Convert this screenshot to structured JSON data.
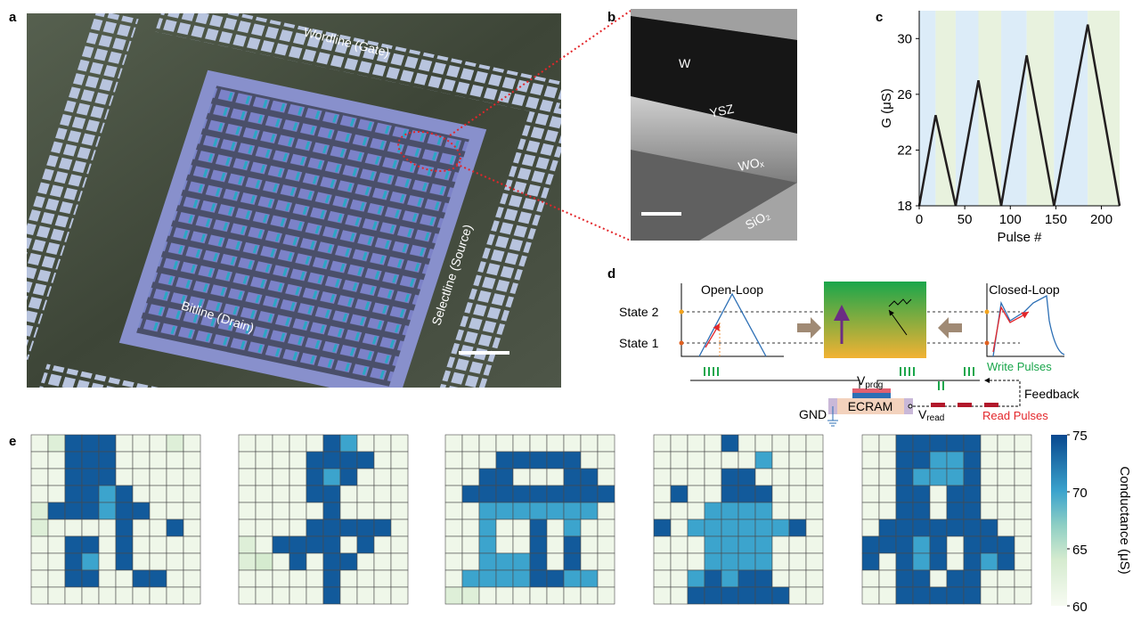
{
  "panel_labels": [
    "a",
    "b",
    "c",
    "d",
    "e"
  ],
  "panel_a": {
    "labels": [
      "Wordline (Gate)",
      "Bitline (Drain)",
      "Selectline (Source)"
    ]
  },
  "panel_b": {
    "labels": [
      "W",
      "YSZ",
      "WOₓ",
      "SiO₂"
    ]
  },
  "panel_d": {
    "open_loop": "Open-Loop",
    "closed_loop": "Closed-Loop",
    "state2": "State 2",
    "state1": "State 1",
    "vprog": [
      "V",
      "prog"
    ],
    "vread": [
      "V",
      "read"
    ],
    "write": "Write Pulses",
    "feedback": "Feedback",
    "ecram": "ECRAM",
    "gnd": "GND",
    "read": "Read Pulses"
  },
  "chart_data": [
    {
      "type": "line",
      "xlabel": "Pulse #",
      "ylabel": "G (μS)",
      "x": [
        0,
        18,
        40,
        65,
        90,
        118,
        148,
        185,
        220
      ],
      "values": [
        18,
        24.5,
        18,
        27,
        18,
        28.8,
        18,
        31,
        18
      ],
      "color": "#231f20",
      "bands": {
        "edges": [
          0,
          18,
          40,
          65,
          90,
          118,
          148,
          185,
          220
        ],
        "colors": [
          "#dcecf8",
          "#e8f2de"
        ]
      },
      "xlim": [
        0,
        220
      ],
      "xticks": [
        0,
        50,
        100,
        150,
        200
      ],
      "ylim": [
        18,
        32
      ],
      "yticks": [
        18,
        22,
        26,
        30
      ]
    },
    {
      "type": "heatmap",
      "matrices": [
        [
          [
            61,
            63,
            74,
            74,
            74,
            61,
            61,
            61,
            63,
            61
          ],
          [
            61,
            61,
            74,
            74,
            74,
            61,
            61,
            61,
            61,
            61
          ],
          [
            61,
            61,
            74,
            74,
            74,
            61,
            61,
            61,
            61,
            61
          ],
          [
            61,
            61,
            74,
            74,
            70,
            74,
            61,
            61,
            61,
            61
          ],
          [
            63,
            74,
            74,
            74,
            70,
            74,
            74,
            61,
            61,
            61
          ],
          [
            63,
            61,
            61,
            61,
            61,
            74,
            61,
            61,
            74,
            61
          ],
          [
            61,
            61,
            74,
            74,
            61,
            74,
            61,
            61,
            61,
            61
          ],
          [
            61,
            61,
            74,
            70,
            61,
            74,
            61,
            61,
            61,
            61
          ],
          [
            61,
            61,
            74,
            74,
            61,
            61,
            74,
            74,
            61,
            61
          ],
          [
            61,
            61,
            61,
            61,
            61,
            61,
            61,
            61,
            61,
            61
          ]
        ],
        [
          [
            61,
            61,
            61,
            61,
            61,
            74,
            70,
            61,
            61,
            61
          ],
          [
            61,
            61,
            61,
            61,
            74,
            74,
            74,
            74,
            61,
            61
          ],
          [
            61,
            61,
            61,
            61,
            74,
            70,
            74,
            61,
            61,
            61
          ],
          [
            61,
            61,
            61,
            61,
            74,
            74,
            61,
            61,
            61,
            61
          ],
          [
            61,
            61,
            61,
            61,
            61,
            74,
            61,
            61,
            61,
            61
          ],
          [
            61,
            61,
            61,
            61,
            74,
            74,
            74,
            74,
            74,
            61
          ],
          [
            63,
            61,
            74,
            74,
            74,
            74,
            61,
            74,
            61,
            61
          ],
          [
            63,
            64,
            61,
            74,
            61,
            74,
            74,
            61,
            61,
            61
          ],
          [
            61,
            61,
            61,
            61,
            61,
            74,
            61,
            61,
            61,
            61
          ],
          [
            61,
            61,
            61,
            61,
            61,
            74,
            61,
            61,
            61,
            61
          ]
        ],
        [
          [
            61,
            61,
            61,
            61,
            61,
            61,
            61,
            61,
            61,
            61
          ],
          [
            61,
            61,
            61,
            74,
            74,
            74,
            74,
            74,
            61,
            61
          ],
          [
            61,
            61,
            74,
            74,
            61,
            61,
            61,
            74,
            74,
            61
          ],
          [
            61,
            74,
            74,
            74,
            74,
            74,
            74,
            74,
            74,
            74
          ],
          [
            61,
            61,
            70,
            70,
            70,
            70,
            70,
            70,
            70,
            61
          ],
          [
            61,
            61,
            70,
            61,
            61,
            74,
            61,
            70,
            61,
            61
          ],
          [
            61,
            61,
            70,
            61,
            61,
            74,
            61,
            74,
            61,
            61
          ],
          [
            61,
            61,
            70,
            70,
            70,
            74,
            61,
            74,
            61,
            61
          ],
          [
            61,
            70,
            70,
            70,
            70,
            74,
            74,
            70,
            70,
            61
          ],
          [
            63,
            63,
            61,
            61,
            61,
            61,
            61,
            61,
            61,
            61
          ]
        ],
        [
          [
            61,
            61,
            61,
            61,
            74,
            61,
            61,
            61,
            61,
            61
          ],
          [
            61,
            61,
            61,
            61,
            61,
            61,
            70,
            61,
            61,
            61
          ],
          [
            61,
            61,
            61,
            61,
            74,
            74,
            61,
            61,
            61,
            61
          ],
          [
            61,
            74,
            61,
            61,
            74,
            74,
            74,
            61,
            61,
            61
          ],
          [
            61,
            61,
            61,
            70,
            70,
            70,
            70,
            61,
            61,
            61
          ],
          [
            74,
            61,
            70,
            70,
            70,
            70,
            70,
            70,
            74,
            61
          ],
          [
            61,
            61,
            61,
            70,
            70,
            70,
            70,
            61,
            61,
            61
          ],
          [
            61,
            61,
            61,
            70,
            70,
            70,
            70,
            61,
            61,
            61
          ],
          [
            61,
            61,
            70,
            74,
            70,
            74,
            74,
            61,
            61,
            61
          ],
          [
            61,
            61,
            74,
            74,
            74,
            74,
            74,
            74,
            61,
            61
          ]
        ],
        [
          [
            61,
            61,
            74,
            74,
            74,
            74,
            74,
            61,
            61,
            61
          ],
          [
            61,
            61,
            74,
            74,
            70,
            70,
            74,
            61,
            61,
            61
          ],
          [
            61,
            61,
            74,
            70,
            70,
            70,
            74,
            61,
            61,
            61
          ],
          [
            61,
            61,
            74,
            74,
            61,
            74,
            74,
            61,
            61,
            61
          ],
          [
            61,
            61,
            74,
            74,
            61,
            74,
            74,
            61,
            61,
            61
          ],
          [
            61,
            74,
            74,
            74,
            74,
            74,
            74,
            74,
            61,
            61
          ],
          [
            74,
            74,
            74,
            70,
            74,
            61,
            74,
            74,
            74,
            61
          ],
          [
            74,
            61,
            74,
            70,
            74,
            61,
            74,
            70,
            74,
            61
          ],
          [
            61,
            61,
            74,
            74,
            61,
            74,
            74,
            61,
            61,
            61
          ],
          [
            61,
            61,
            74,
            74,
            74,
            74,
            74,
            61,
            61,
            61
          ]
        ]
      ],
      "colorbar": {
        "label": "Conductance (μS)",
        "lim": [
          60,
          75
        ],
        "ticks": [
          60,
          65,
          70,
          75
        ]
      }
    }
  ]
}
